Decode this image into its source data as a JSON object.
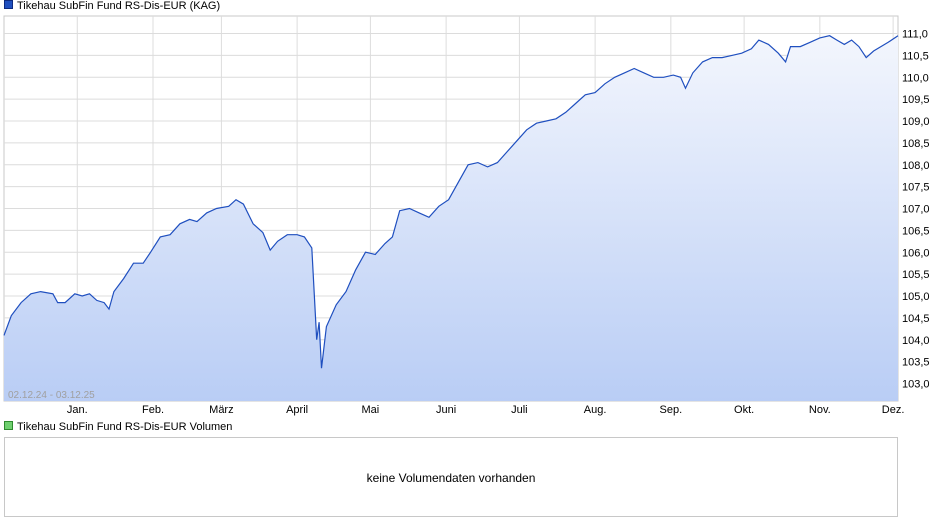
{
  "legend": {
    "price_label": "Tikehau SubFin Fund RS-Dis-EUR (KAG)",
    "volume_label": "Tikehau SubFin Fund RS-Dis-EUR Volumen"
  },
  "date_range_label": "02.12.24 - 03.12.25",
  "volume_message": "keine Volumendaten vorhanden",
  "colors": {
    "line": "#1f4fbf",
    "fill_top": "#f3f6fd",
    "fill_bottom": "#b9cdf5",
    "grid": "#dcdcdc"
  },
  "chart_data": {
    "type": "area",
    "x_unit": "date",
    "ylim": [
      102.6,
      111.4
    ],
    "y_ticks": [
      "103,0",
      "103,5",
      "104,0",
      "104,5",
      "105,0",
      "105,5",
      "106,0",
      "106,5",
      "107,0",
      "107,5",
      "108,0",
      "108,5",
      "109,0",
      "109,5",
      "110,0",
      "110,5",
      "111,0"
    ],
    "x_ticks": [
      {
        "label": "Jan.",
        "date": "2025-01-01"
      },
      {
        "label": "Feb.",
        "date": "2025-02-01"
      },
      {
        "label": "März",
        "date": "2025-03-01"
      },
      {
        "label": "April",
        "date": "2025-04-01"
      },
      {
        "label": "Mai",
        "date": "2025-05-01"
      },
      {
        "label": "Juni",
        "date": "2025-06-01"
      },
      {
        "label": "Juli",
        "date": "2025-07-01"
      },
      {
        "label": "Aug.",
        "date": "2025-08-01"
      },
      {
        "label": "Sep.",
        "date": "2025-09-01"
      },
      {
        "label": "Okt.",
        "date": "2025-10-01"
      },
      {
        "label": "Nov.",
        "date": "2025-11-01"
      },
      {
        "label": "Dez.",
        "date": "2025-12-01"
      }
    ],
    "grid": true,
    "legend_position": "top-left",
    "series": [
      {
        "name": "Tikehau SubFin Fund RS-Dis-EUR (KAG)",
        "points": [
          {
            "x": "2024-12-02",
            "y": 104.1
          },
          {
            "x": "2024-12-05",
            "y": 104.55
          },
          {
            "x": "2024-12-09",
            "y": 104.85
          },
          {
            "x": "2024-12-13",
            "y": 105.05
          },
          {
            "x": "2024-12-17",
            "y": 105.1
          },
          {
            "x": "2024-12-22",
            "y": 105.05
          },
          {
            "x": "2024-12-24",
            "y": 104.85
          },
          {
            "x": "2024-12-27",
            "y": 104.85
          },
          {
            "x": "2024-12-31",
            "y": 105.05
          },
          {
            "x": "2025-01-03",
            "y": 105.0
          },
          {
            "x": "2025-01-06",
            "y": 105.05
          },
          {
            "x": "2025-01-09",
            "y": 104.9
          },
          {
            "x": "2025-01-12",
            "y": 104.85
          },
          {
            "x": "2025-01-14",
            "y": 104.7
          },
          {
            "x": "2025-01-16",
            "y": 105.1
          },
          {
            "x": "2025-01-20",
            "y": 105.4
          },
          {
            "x": "2025-01-24",
            "y": 105.75
          },
          {
            "x": "2025-01-28",
            "y": 105.75
          },
          {
            "x": "2025-01-31",
            "y": 106.0
          },
          {
            "x": "2025-02-04",
            "y": 106.35
          },
          {
            "x": "2025-02-08",
            "y": 106.4
          },
          {
            "x": "2025-02-12",
            "y": 106.65
          },
          {
            "x": "2025-02-16",
            "y": 106.75
          },
          {
            "x": "2025-02-19",
            "y": 106.7
          },
          {
            "x": "2025-02-23",
            "y": 106.9
          },
          {
            "x": "2025-02-27",
            "y": 107.0
          },
          {
            "x": "2025-03-04",
            "y": 107.05
          },
          {
            "x": "2025-03-07",
            "y": 107.2
          },
          {
            "x": "2025-03-10",
            "y": 107.1
          },
          {
            "x": "2025-03-14",
            "y": 106.65
          },
          {
            "x": "2025-03-18",
            "y": 106.45
          },
          {
            "x": "2025-03-21",
            "y": 106.05
          },
          {
            "x": "2025-03-24",
            "y": 106.25
          },
          {
            "x": "2025-03-28",
            "y": 106.4
          },
          {
            "x": "2025-04-01",
            "y": 106.4
          },
          {
            "x": "2025-04-04",
            "y": 106.35
          },
          {
            "x": "2025-04-07",
            "y": 106.1
          },
          {
            "x": "2025-04-09",
            "y": 104.0
          },
          {
            "x": "2025-04-10",
            "y": 104.4
          },
          {
            "x": "2025-04-11",
            "y": 103.35
          },
          {
            "x": "2025-04-13",
            "y": 104.3
          },
          {
            "x": "2025-04-17",
            "y": 104.8
          },
          {
            "x": "2025-04-21",
            "y": 105.1
          },
          {
            "x": "2025-04-25",
            "y": 105.6
          },
          {
            "x": "2025-04-29",
            "y": 106.0
          },
          {
            "x": "2025-05-03",
            "y": 105.95
          },
          {
            "x": "2025-05-07",
            "y": 106.2
          },
          {
            "x": "2025-05-10",
            "y": 106.35
          },
          {
            "x": "2025-05-13",
            "y": 106.95
          },
          {
            "x": "2025-05-17",
            "y": 107.0
          },
          {
            "x": "2025-05-21",
            "y": 106.9
          },
          {
            "x": "2025-05-25",
            "y": 106.8
          },
          {
            "x": "2025-05-29",
            "y": 107.05
          },
          {
            "x": "2025-06-02",
            "y": 107.2
          },
          {
            "x": "2025-06-06",
            "y": 107.6
          },
          {
            "x": "2025-06-10",
            "y": 108.0
          },
          {
            "x": "2025-06-14",
            "y": 108.05
          },
          {
            "x": "2025-06-18",
            "y": 107.95
          },
          {
            "x": "2025-06-22",
            "y": 108.05
          },
          {
            "x": "2025-06-26",
            "y": 108.3
          },
          {
            "x": "2025-06-30",
            "y": 108.55
          },
          {
            "x": "2025-07-04",
            "y": 108.8
          },
          {
            "x": "2025-07-08",
            "y": 108.95
          },
          {
            "x": "2025-07-12",
            "y": 109.0
          },
          {
            "x": "2025-07-16",
            "y": 109.05
          },
          {
            "x": "2025-07-20",
            "y": 109.2
          },
          {
            "x": "2025-07-24",
            "y": 109.4
          },
          {
            "x": "2025-07-28",
            "y": 109.6
          },
          {
            "x": "2025-08-01",
            "y": 109.65
          },
          {
            "x": "2025-08-05",
            "y": 109.85
          },
          {
            "x": "2025-08-09",
            "y": 110.0
          },
          {
            "x": "2025-08-13",
            "y": 110.1
          },
          {
            "x": "2025-08-17",
            "y": 110.2
          },
          {
            "x": "2025-08-21",
            "y": 110.1
          },
          {
            "x": "2025-08-25",
            "y": 110.0
          },
          {
            "x": "2025-08-29",
            "y": 110.0
          },
          {
            "x": "2025-09-02",
            "y": 110.05
          },
          {
            "x": "2025-09-05",
            "y": 110.0
          },
          {
            "x": "2025-09-07",
            "y": 109.75
          },
          {
            "x": "2025-09-10",
            "y": 110.1
          },
          {
            "x": "2025-09-14",
            "y": 110.35
          },
          {
            "x": "2025-09-18",
            "y": 110.45
          },
          {
            "x": "2025-09-22",
            "y": 110.45
          },
          {
            "x": "2025-09-26",
            "y": 110.5
          },
          {
            "x": "2025-09-30",
            "y": 110.55
          },
          {
            "x": "2025-10-04",
            "y": 110.65
          },
          {
            "x": "2025-10-07",
            "y": 110.85
          },
          {
            "x": "2025-10-11",
            "y": 110.75
          },
          {
            "x": "2025-10-15",
            "y": 110.55
          },
          {
            "x": "2025-10-18",
            "y": 110.35
          },
          {
            "x": "2025-10-20",
            "y": 110.7
          },
          {
            "x": "2025-10-24",
            "y": 110.7
          },
          {
            "x": "2025-10-28",
            "y": 110.8
          },
          {
            "x": "2025-11-01",
            "y": 110.9
          },
          {
            "x": "2025-11-05",
            "y": 110.95
          },
          {
            "x": "2025-11-08",
            "y": 110.85
          },
          {
            "x": "2025-11-11",
            "y": 110.75
          },
          {
            "x": "2025-11-14",
            "y": 110.85
          },
          {
            "x": "2025-11-17",
            "y": 110.7
          },
          {
            "x": "2025-11-20",
            "y": 110.45
          },
          {
            "x": "2025-11-23",
            "y": 110.6
          },
          {
            "x": "2025-11-26",
            "y": 110.7
          },
          {
            "x": "2025-11-29",
            "y": 110.8
          },
          {
            "x": "2025-12-03",
            "y": 110.95
          }
        ]
      }
    ]
  }
}
